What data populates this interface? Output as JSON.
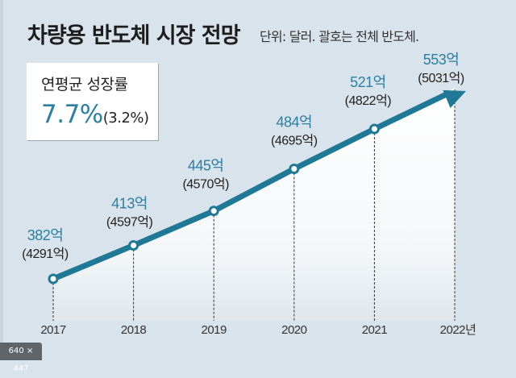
{
  "chart_data": {
    "type": "line",
    "title": "차량용 반도체 시장 전망",
    "subtitle": "단위: 달러. 괄호는 전체 반도체.",
    "categories": [
      "2017",
      "2018",
      "2019",
      "2020",
      "2021",
      "2022년"
    ],
    "series": [
      {
        "name": "차량용 반도체",
        "values": [
          382,
          413,
          445,
          484,
          521,
          553
        ],
        "unit": "억 달러"
      },
      {
        "name": "전체 반도체",
        "values": [
          4291,
          4597,
          4570,
          4695,
          4822,
          5031
        ],
        "unit": "억 달러"
      }
    ],
    "value_labels": [
      "382억",
      "413억",
      "445억",
      "484억",
      "521억",
      "553억"
    ],
    "total_labels": [
      "(4291억)",
      "(4597억)",
      "(4570억)",
      "(4695억)",
      "(4822억)",
      "(5031억)"
    ],
    "xlabel": "",
    "ylabel": "",
    "grid": false,
    "legend": "none",
    "annotation": {
      "label": "연평균 성장률",
      "value": "7.7%",
      "sub_value": "(3.2%)",
      "placement": "top-left"
    }
  },
  "colors": {
    "line": "#1f7896",
    "accent_text": "#2a7fa3",
    "background": "#d9e3eb"
  },
  "overlay": {
    "dimensions_badge": "640 × 447"
  }
}
